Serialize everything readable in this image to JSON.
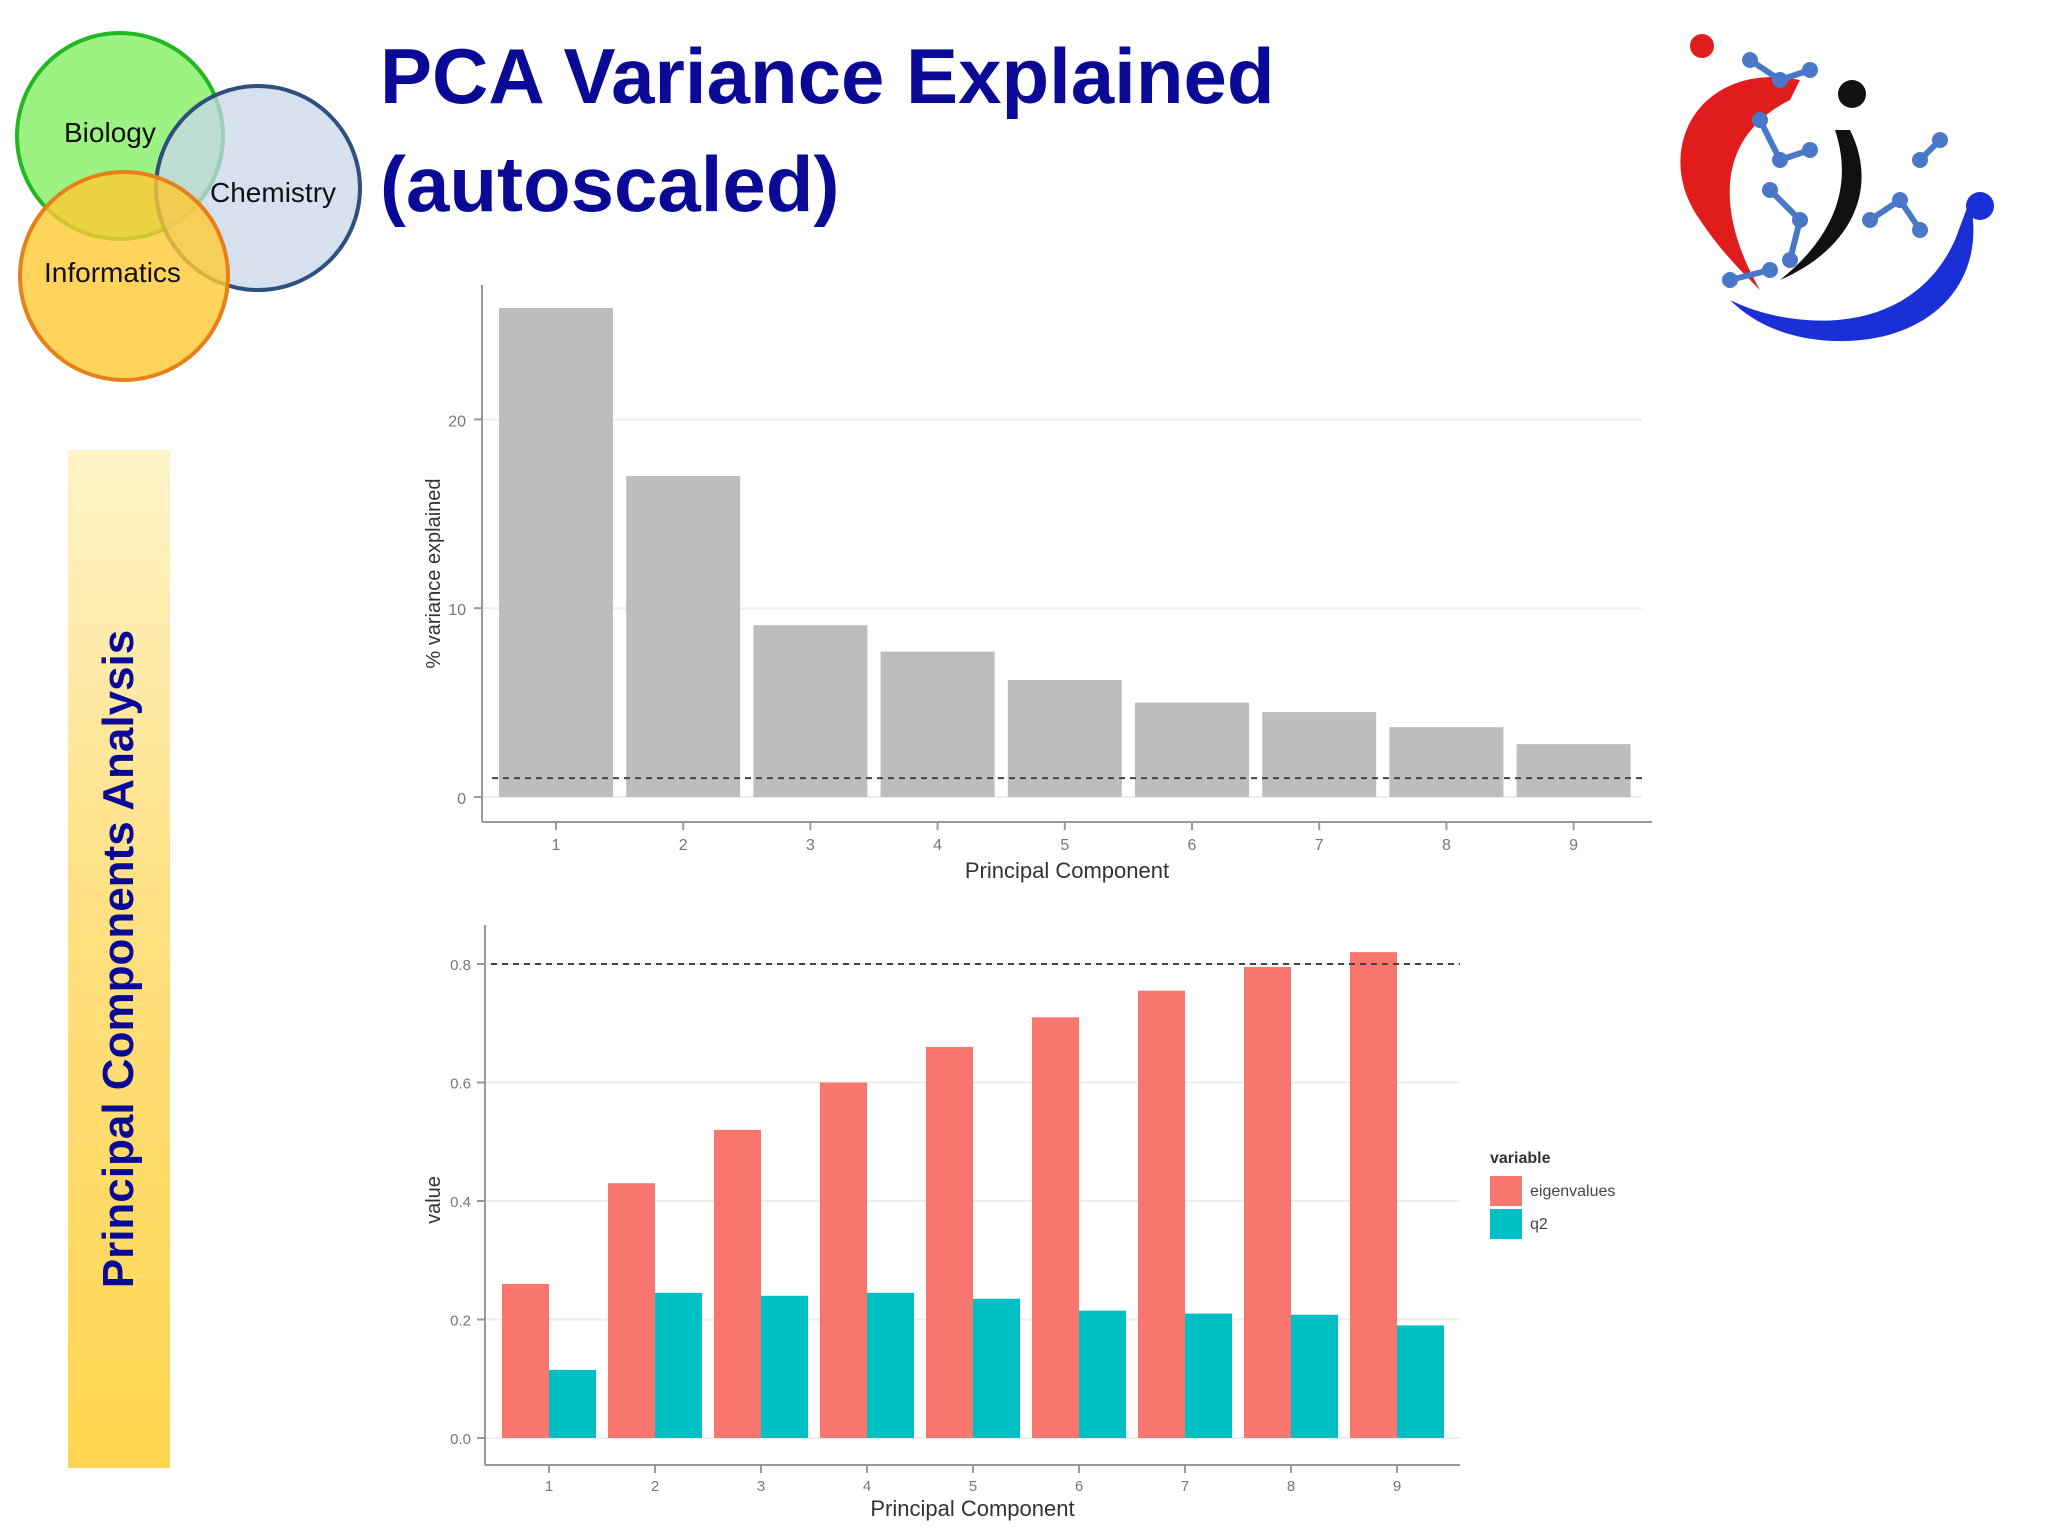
{
  "slide": {
    "title_line1": "PCA Variance Explained",
    "title_line2": "(autoscaled)",
    "sidebar_label": "Principal Components Analysis",
    "venn": {
      "biology": "Biology",
      "chemistry": "Chemistry",
      "informatics": "Informatics"
    },
    "colors": {
      "title": "#0a0a96",
      "biology": "#8cf06e",
      "chemistry": "#c8d6ea",
      "informatics": "#ffc933"
    },
    "logo_icon": "molecule-heart-logo"
  },
  "chart_data": [
    {
      "type": "bar",
      "title": "",
      "xlabel": "Principal Component",
      "ylabel": "% variance explained",
      "categories": [
        "1",
        "2",
        "3",
        "4",
        "5",
        "6",
        "7",
        "8",
        "9"
      ],
      "values": [
        25.9,
        17.0,
        9.1,
        7.7,
        6.2,
        5.0,
        4.5,
        3.7,
        2.8
      ],
      "ylim": [
        0,
        27
      ],
      "yticks": [
        0,
        10,
        20
      ],
      "reference_line": 1,
      "bar_color": "#bdbdbf",
      "grid": true
    },
    {
      "type": "bar",
      "title": "",
      "xlabel": "Principal Component",
      "ylabel": "value",
      "categories": [
        "1",
        "2",
        "3",
        "4",
        "5",
        "6",
        "7",
        "8",
        "9"
      ],
      "series": [
        {
          "name": "eigenvalues",
          "color": "#f8766d",
          "values": [
            0.26,
            0.43,
            0.52,
            0.6,
            0.66,
            0.71,
            0.755,
            0.795,
            0.82
          ]
        },
        {
          "name": "q2",
          "color": "#00bfc4",
          "values": [
            0.115,
            0.245,
            0.24,
            0.245,
            0.235,
            0.215,
            0.21,
            0.208,
            0.19
          ]
        }
      ],
      "ylim": [
        0,
        0.86
      ],
      "yticks": [
        "0.0",
        "0.2",
        "0.4",
        "0.6",
        "0.8"
      ],
      "reference_line": 0.8,
      "legend_title": "variable",
      "legend_position": "right",
      "grid": true
    }
  ]
}
